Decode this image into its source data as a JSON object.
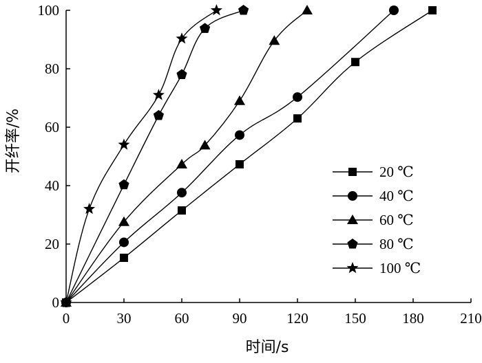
{
  "chart_data": {
    "type": "line",
    "xlabel": "时间/s",
    "ylabel": "开纤率/%",
    "xlim": [
      0,
      210
    ],
    "ylim": [
      0,
      100
    ],
    "xticks": [
      "0",
      "30",
      "60",
      "90",
      "120",
      "150",
      "180",
      "210"
    ],
    "yticks": [
      "0",
      "20",
      "40",
      "60",
      "80",
      "100"
    ],
    "grid": false,
    "legend_position": "right",
    "series": [
      {
        "name": "20 ℃",
        "marker": "square",
        "x": [
          0,
          30,
          60,
          90,
          120,
          150,
          190
        ],
        "y": [
          0,
          15.3,
          31.5,
          47.3,
          63,
          82.3,
          100
        ]
      },
      {
        "name": "40 ℃",
        "marker": "circle",
        "x": [
          0,
          30,
          60,
          90,
          120,
          170
        ],
        "y": [
          0,
          20.6,
          37.6,
          57.3,
          70.3,
          100
        ]
      },
      {
        "name": "60 ℃",
        "marker": "triangle",
        "x": [
          0,
          30,
          60,
          72,
          90,
          108,
          125
        ],
        "y": [
          0,
          27.6,
          47.3,
          53.8,
          69,
          89.6,
          100
        ]
      },
      {
        "name": "80 ℃",
        "marker": "pentagon",
        "x": [
          0,
          30,
          48,
          60,
          72,
          92
        ],
        "y": [
          0,
          40.3,
          64,
          78,
          93.8,
          100
        ]
      },
      {
        "name": "100 ℃",
        "marker": "star",
        "x": [
          0,
          12,
          30,
          48,
          60,
          78
        ],
        "y": [
          0,
          32,
          54,
          71,
          90.3,
          100
        ]
      }
    ]
  }
}
